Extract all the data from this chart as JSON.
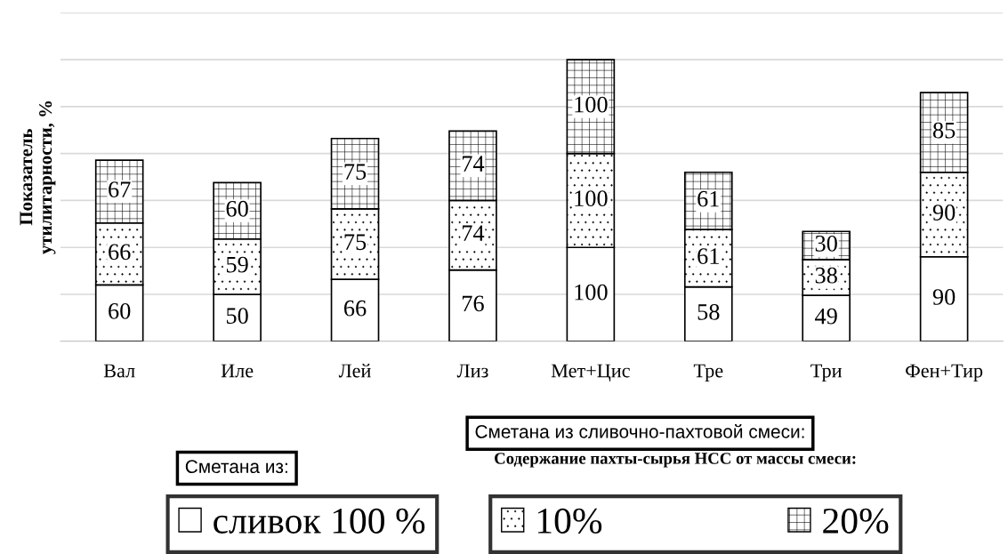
{
  "chart_data": {
    "type": "bar",
    "stacked": true,
    "ylabel": "Показатель\nутилитарности, %",
    "categories": [
      "Вал",
      "Иле",
      "Лей",
      "Лиз",
      "Мет+Цис",
      "Тре",
      "Три",
      "Фен+Тир"
    ],
    "series": [
      {
        "name": "сливок 100 %",
        "color": "#ffffff",
        "values": [
          60,
          50,
          66,
          76,
          100,
          58,
          49,
          90
        ]
      },
      {
        "name": "10%",
        "color": "#ffffff",
        "values": [
          66,
          59,
          75,
          74,
          100,
          61,
          38,
          90
        ]
      },
      {
        "name": "20%",
        "color": "#ffffff",
        "values": [
          67,
          60,
          75,
          74,
          100,
          61,
          30,
          85
        ]
      }
    ],
    "ylim": [
      0,
      350
    ],
    "yticks": [
      0,
      50,
      100,
      150,
      200,
      250,
      300,
      350
    ],
    "grid": "y",
    "tick_labels": "x",
    "data_labels": true,
    "legend": "bottom",
    "annotations": [
      "Сметана из:",
      "Сметана из сливочно-пахтовой смеси:",
      "Содержание пахты-сырья НСС от массы смеси:"
    ]
  }
}
